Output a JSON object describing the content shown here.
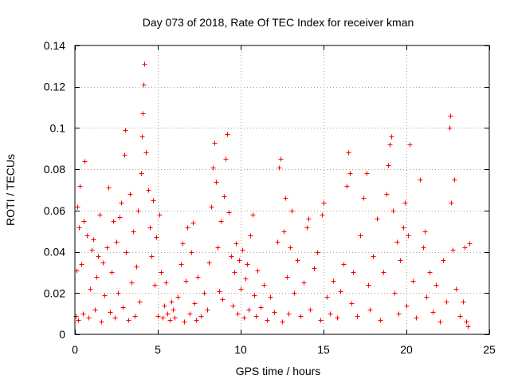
{
  "chart_data": {
    "type": "scatter",
    "title": "Day 073 of 2018, Rate Of TEC Index for receiver kman",
    "xlabel": "GPS time / hours",
    "ylabel": "ROTI / TECUs",
    "xlim": [
      0,
      25
    ],
    "ylim": [
      0,
      0.14
    ],
    "xticks": [
      0,
      5,
      10,
      15,
      20,
      25
    ],
    "xtick_labels": [
      "0",
      "5",
      "10",
      "15",
      "20",
      "25"
    ],
    "yticks": [
      0,
      0.02,
      0.04,
      0.06,
      0.08,
      0.1,
      0.12,
      0.14
    ],
    "ytick_labels": [
      "0",
      "0.02",
      "0.04",
      "0.06",
      "0.08",
      "0.1",
      "0.12",
      "0.14"
    ],
    "grid": true,
    "marker": "+",
    "color": "#ff0000",
    "series": [
      {
        "name": "ROTI",
        "points": [
          [
            0.05,
            0.009
          ],
          [
            0.1,
            0.031
          ],
          [
            0.15,
            0.062
          ],
          [
            0.2,
            0.007
          ],
          [
            0.25,
            0.052
          ],
          [
            0.3,
            0.072
          ],
          [
            0.4,
            0.034
          ],
          [
            0.5,
            0.01
          ],
          [
            0.55,
            0.055
          ],
          [
            0.6,
            0.084
          ],
          [
            0.7,
            0.048
          ],
          [
            0.8,
            0.008
          ],
          [
            0.9,
            0.022
          ],
          [
            1.0,
            0.041
          ],
          [
            1.1,
            0.046
          ],
          [
            1.2,
            0.012
          ],
          [
            1.3,
            0.028
          ],
          [
            1.4,
            0.038
          ],
          [
            1.5,
            0.058
          ],
          [
            1.6,
            0.006
          ],
          [
            1.7,
            0.035
          ],
          [
            1.8,
            0.019
          ],
          [
            1.9,
            0.042
          ],
          [
            2.0,
            0.071
          ],
          [
            2.1,
            0.011
          ],
          [
            2.2,
            0.03
          ],
          [
            2.3,
            0.055
          ],
          [
            2.4,
            0.008
          ],
          [
            2.5,
            0.045
          ],
          [
            2.6,
            0.02
          ],
          [
            2.7,
            0.057
          ],
          [
            2.8,
            0.064
          ],
          [
            2.9,
            0.013
          ],
          [
            3.0,
            0.087
          ],
          [
            3.05,
            0.099
          ],
          [
            3.1,
            0.04
          ],
          [
            3.2,
            0.007
          ],
          [
            3.3,
            0.068
          ],
          [
            3.4,
            0.025
          ],
          [
            3.5,
            0.05
          ],
          [
            3.6,
            0.009
          ],
          [
            3.7,
            0.033
          ],
          [
            3.8,
            0.06
          ],
          [
            3.9,
            0.016
          ],
          [
            4.0,
            0.078
          ],
          [
            4.05,
            0.096
          ],
          [
            4.1,
            0.107
          ],
          [
            4.15,
            0.121
          ],
          [
            4.2,
            0.131
          ],
          [
            4.3,
            0.088
          ],
          [
            4.4,
            0.07
          ],
          [
            4.5,
            0.052
          ],
          [
            4.6,
            0.038
          ],
          [
            4.7,
            0.065
          ],
          [
            4.8,
            0.024
          ],
          [
            4.9,
            0.047
          ],
          [
            5.0,
            0.009
          ],
          [
            5.1,
            0.058
          ],
          [
            5.2,
            0.03
          ],
          [
            5.3,
            0.008
          ],
          [
            5.4,
            0.014
          ],
          [
            5.5,
            0.025
          ],
          [
            5.6,
            0.01
          ],
          [
            5.7,
            0.007
          ],
          [
            5.8,
            0.016
          ],
          [
            5.9,
            0.012
          ],
          [
            6.0,
            0.008
          ],
          [
            6.2,
            0.018
          ],
          [
            6.4,
            0.034
          ],
          [
            6.5,
            0.044
          ],
          [
            6.6,
            0.006
          ],
          [
            6.7,
            0.026
          ],
          [
            6.8,
            0.052
          ],
          [
            6.9,
            0.01
          ],
          [
            7.0,
            0.04
          ],
          [
            7.1,
            0.054
          ],
          [
            7.2,
            0.015
          ],
          [
            7.3,
            0.007
          ],
          [
            7.4,
            0.028
          ],
          [
            7.6,
            0.009
          ],
          [
            7.8,
            0.02
          ],
          [
            8.0,
            0.012
          ],
          [
            8.1,
            0.035
          ],
          [
            8.2,
            0.062
          ],
          [
            8.3,
            0.081
          ],
          [
            8.4,
            0.093
          ],
          [
            8.5,
            0.074
          ],
          [
            8.6,
            0.042
          ],
          [
            8.7,
            0.021
          ],
          [
            8.8,
            0.055
          ],
          [
            8.9,
            0.017
          ],
          [
            9.0,
            0.067
          ],
          [
            9.1,
            0.085
          ],
          [
            9.2,
            0.097
          ],
          [
            9.3,
            0.059
          ],
          [
            9.4,
            0.038
          ],
          [
            9.5,
            0.014
          ],
          [
            9.6,
            0.03
          ],
          [
            9.7,
            0.044
          ],
          [
            9.8,
            0.01
          ],
          [
            9.9,
            0.036
          ],
          [
            10.0,
            0.022
          ],
          [
            10.1,
            0.041
          ],
          [
            10.2,
            0.008
          ],
          [
            10.3,
            0.027
          ],
          [
            10.4,
            0.034
          ],
          [
            10.5,
            0.012
          ],
          [
            10.6,
            0.048
          ],
          [
            10.7,
            0.058
          ],
          [
            10.8,
            0.019
          ],
          [
            10.9,
            0.009
          ],
          [
            11.0,
            0.031
          ],
          [
            11.2,
            0.013
          ],
          [
            11.4,
            0.024
          ],
          [
            11.6,
            0.007
          ],
          [
            11.8,
            0.018
          ],
          [
            12.0,
            0.011
          ],
          [
            12.2,
            0.045
          ],
          [
            12.3,
            0.081
          ],
          [
            12.4,
            0.085
          ],
          [
            12.5,
            0.006
          ],
          [
            12.6,
            0.05
          ],
          [
            12.7,
            0.066
          ],
          [
            12.8,
            0.028
          ],
          [
            12.9,
            0.01
          ],
          [
            13.0,
            0.042
          ],
          [
            13.1,
            0.06
          ],
          [
            13.2,
            0.02
          ],
          [
            13.4,
            0.036
          ],
          [
            13.6,
            0.009
          ],
          [
            13.8,
            0.025
          ],
          [
            14.0,
            0.052
          ],
          [
            14.1,
            0.056
          ],
          [
            14.2,
            0.012
          ],
          [
            14.4,
            0.032
          ],
          [
            14.6,
            0.04
          ],
          [
            14.8,
            0.007
          ],
          [
            14.9,
            0.058
          ],
          [
            15.0,
            0.064
          ],
          [
            15.2,
            0.018
          ],
          [
            15.4,
            0.01
          ],
          [
            15.6,
            0.026
          ],
          [
            15.8,
            0.008
          ],
          [
            16.0,
            0.021
          ],
          [
            16.2,
            0.034
          ],
          [
            16.4,
            0.072
          ],
          [
            16.5,
            0.088
          ],
          [
            16.6,
            0.078
          ],
          [
            16.7,
            0.015
          ],
          [
            16.8,
            0.03
          ],
          [
            17.0,
            0.009
          ],
          [
            17.2,
            0.048
          ],
          [
            17.4,
            0.066
          ],
          [
            17.6,
            0.078
          ],
          [
            17.7,
            0.024
          ],
          [
            17.8,
            0.012
          ],
          [
            18.0,
            0.038
          ],
          [
            18.2,
            0.056
          ],
          [
            18.4,
            0.007
          ],
          [
            18.6,
            0.03
          ],
          [
            18.8,
            0.068
          ],
          [
            18.9,
            0.082
          ],
          [
            19.0,
            0.092
          ],
          [
            19.1,
            0.096
          ],
          [
            19.2,
            0.06
          ],
          [
            19.3,
            0.02
          ],
          [
            19.4,
            0.045
          ],
          [
            19.5,
            0.01
          ],
          [
            19.6,
            0.036
          ],
          [
            19.8,
            0.052
          ],
          [
            19.9,
            0.064
          ],
          [
            20.0,
            0.014
          ],
          [
            20.1,
            0.048
          ],
          [
            20.2,
            0.092
          ],
          [
            20.4,
            0.026
          ],
          [
            20.6,
            0.008
          ],
          [
            20.8,
            0.075
          ],
          [
            21.0,
            0.042
          ],
          [
            21.1,
            0.05
          ],
          [
            21.2,
            0.018
          ],
          [
            21.4,
            0.03
          ],
          [
            21.6,
            0.011
          ],
          [
            21.8,
            0.024
          ],
          [
            22.0,
            0.006
          ],
          [
            22.2,
            0.036
          ],
          [
            22.4,
            0.016
          ],
          [
            22.6,
            0.1
          ],
          [
            22.65,
            0.106
          ],
          [
            22.7,
            0.064
          ],
          [
            22.8,
            0.041
          ],
          [
            22.9,
            0.075
          ],
          [
            23.0,
            0.022
          ],
          [
            23.2,
            0.009
          ],
          [
            23.4,
            0.016
          ],
          [
            23.5,
            0.042
          ],
          [
            23.6,
            0.006
          ],
          [
            23.7,
            0.004
          ],
          [
            23.8,
            0.044
          ]
        ]
      }
    ]
  }
}
